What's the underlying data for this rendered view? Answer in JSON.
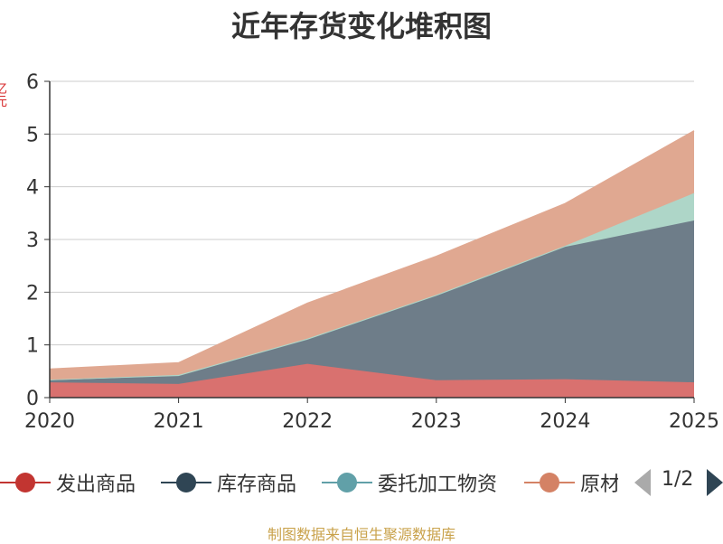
{
  "chart_data": {
    "type": "area",
    "stacked": true,
    "title": "近年存货变化堆积图",
    "ylabel": "亿元",
    "x": [
      "2020",
      "2021",
      "2022",
      "2023",
      "2024",
      "2025"
    ],
    "ylim": [
      0,
      6
    ],
    "yticks": [
      "0",
      "1",
      "2",
      "3",
      "4",
      "5",
      "6"
    ],
    "grid": true,
    "legend_position": "bottom",
    "series": [
      {
        "name": "发出商品",
        "color": "#d9716f",
        "legend_color": "#c23531",
        "values": [
          0.29,
          0.26,
          0.64,
          0.33,
          0.35,
          0.29
        ]
      },
      {
        "name": "库存商品",
        "color": "#6e7d89",
        "legend_color": "#2f4554",
        "values": [
          0.04,
          0.15,
          0.46,
          1.6,
          2.51,
          3.07
        ]
      },
      {
        "name": "委托加工物资",
        "color": "#aed6c8",
        "legend_color": "#61a0a8",
        "values": [
          0.01,
          0.02,
          0.02,
          0.02,
          0.02,
          0.52
        ]
      },
      {
        "name": "原材料",
        "color": "#e0a891",
        "legend_color": "#d48265",
        "values": [
          0.2,
          0.23,
          0.67,
          0.73,
          0.8,
          1.18
        ]
      }
    ]
  },
  "legend": {
    "items": [
      "发出商品",
      "库存商品",
      "委托加工物资",
      "原材料"
    ],
    "page_text": "1/2"
  },
  "source": "制图数据来自恒生聚源数据库"
}
